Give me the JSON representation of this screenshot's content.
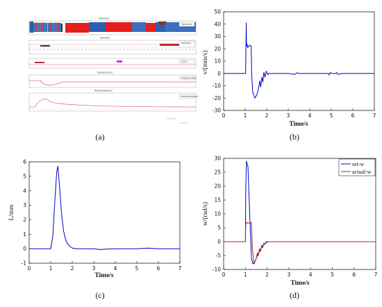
{
  "captions": {
    "a": "(a)",
    "b": "(b)",
    "c": "(c)",
    "d": "(d)"
  },
  "panel_a": {
    "subplot_titles": [
      "Pgearbox",
      "Speed(v)",
      "Accel(w)",
      "Displacement",
      "Rotate(degrees)"
    ],
    "legend_labels": [
      "Pgearbox",
      "Speed(v)",
      "Accel",
      "Displacement",
      "Rotate(degrees)"
    ]
  },
  "chart_data": [
    {
      "id": "b",
      "type": "line",
      "xlabel": "Time/s",
      "ylabel": "v/(mm/s)",
      "xlim": [
        0,
        7
      ],
      "ylim": [
        -30,
        50
      ],
      "xticks": [
        0,
        1,
        2,
        3,
        4,
        5,
        6,
        7
      ],
      "yticks": [
        -30,
        -20,
        -10,
        0,
        10,
        20,
        30,
        40,
        50
      ],
      "grid": false,
      "series": [
        {
          "color": "#0000cc",
          "x": [
            0,
            1.0,
            1.02,
            1.05,
            1.06,
            1.08,
            1.12,
            1.2,
            1.28,
            1.3,
            1.35,
            1.45,
            1.55,
            1.62,
            1.68,
            1.72,
            1.78,
            1.82,
            1.87,
            1.92,
            1.98,
            2.05,
            2.1,
            2.2,
            2.5,
            3.0,
            3.3,
            3.4,
            3.5,
            4.0,
            4.85,
            4.9,
            4.95,
            5.0,
            5.2,
            5.25,
            5.3,
            5.5,
            7.0
          ],
          "y": [
            0,
            0,
            0,
            41,
            22,
            24,
            21,
            23,
            22,
            0,
            -15,
            -20,
            -17,
            -12,
            -6,
            -11,
            -3,
            -7,
            1,
            -3,
            2,
            -1,
            0,
            0,
            0,
            0,
            -0.8,
            0.5,
            0,
            0,
            0,
            -1.2,
            0.8,
            0,
            0,
            0.8,
            -0.8,
            0,
            0
          ]
        }
      ]
    },
    {
      "id": "c",
      "type": "line",
      "xlabel": "Time/s",
      "ylabel": "L/mm",
      "xlim": [
        0,
        7
      ],
      "ylim": [
        -1,
        6
      ],
      "xticks": [
        0,
        1,
        2,
        3,
        4,
        5,
        6,
        7
      ],
      "yticks": [
        -1,
        0,
        1,
        2,
        3,
        4,
        5,
        6
      ],
      "grid": false,
      "series": [
        {
          "color": "#0000cc",
          "x": [
            0,
            1.0,
            1.1,
            1.2,
            1.28,
            1.33,
            1.4,
            1.5,
            1.6,
            1.7,
            1.8,
            1.9,
            2.0,
            2.2,
            2.6,
            3.0,
            3.3,
            3.6,
            4.0,
            5.0,
            5.5,
            6.0,
            7.0
          ],
          "y": [
            0,
            0,
            0.9,
            3.5,
            5.3,
            5.7,
            4.5,
            2.5,
            1.2,
            0.6,
            0.3,
            0.15,
            0.05,
            0,
            0,
            0,
            -0.06,
            -0.02,
            0,
            0,
            0.04,
            0,
            0
          ]
        }
      ]
    },
    {
      "id": "d",
      "type": "line",
      "xlabel": "Time/s",
      "ylabel": "w/(rad/s)",
      "xlim": [
        0,
        7
      ],
      "ylim": [
        -10,
        30
      ],
      "xticks": [
        0,
        1,
        2,
        3,
        4,
        5,
        6,
        7
      ],
      "yticks": [
        -10,
        -5,
        0,
        5,
        10,
        15,
        20,
        25,
        30
      ],
      "grid": false,
      "legend_position": "top-right",
      "series": [
        {
          "name": "set-w",
          "color": "#0000cc",
          "x": [
            0,
            1.0,
            1.02,
            1.05,
            1.08,
            1.12,
            1.2,
            1.28,
            1.35,
            1.45,
            1.55,
            1.65,
            1.75,
            1.85,
            1.95,
            2.05,
            2.2,
            2.5,
            7.0
          ],
          "y": [
            0,
            0,
            20,
            29,
            28,
            27,
            10,
            -6,
            -8,
            -7,
            -5,
            -3.5,
            -2,
            -1,
            -0.4,
            0,
            0,
            0,
            0
          ]
        },
        {
          "name": "actual-w",
          "color": "#a52a2a",
          "x": [
            0,
            1.0,
            1.02,
            1.05,
            1.1,
            1.2,
            1.28,
            1.32,
            1.4,
            1.5,
            1.55,
            1.6,
            1.65,
            1.7,
            1.75,
            1.8,
            1.85,
            1.9,
            1.95,
            2.05,
            2.2,
            2.5,
            7.0
          ],
          "y": [
            0,
            0,
            7,
            6.5,
            7,
            6.5,
            7,
            -2,
            -8,
            -6,
            -4,
            -5,
            -2.5,
            -3.5,
            -1.2,
            -2.2,
            -0.4,
            -1,
            0,
            0,
            0,
            0,
            0
          ]
        }
      ]
    }
  ]
}
